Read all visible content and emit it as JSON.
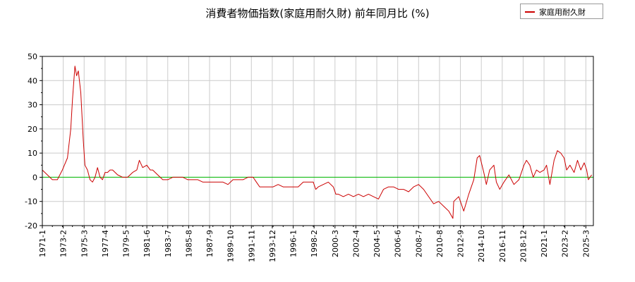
{
  "chart_data": {
    "type": "line",
    "title": "消費者物価指数(家庭用耐久財) 前年同月比 (%)",
    "xlabel": "",
    "ylabel": "",
    "ylim": [
      -20,
      50
    ],
    "yticks": [
      -20,
      -10,
      0,
      10,
      20,
      30,
      40,
      50
    ],
    "grid": true,
    "legend_position": "top-right",
    "reference_line": 0,
    "x_tick_labels": [
      "1971-1",
      "1973-2",
      "1975-3",
      "1977-4",
      "1979-5",
      "1981-6",
      "1983-7",
      "1985-8",
      "1987-9",
      "1989-10",
      "1991-11",
      "1993-12",
      "1996-1",
      "1998-2",
      "2000-3",
      "2002-4",
      "2004-5",
      "2006-6",
      "2008-7",
      "2010-8",
      "2012-9",
      "2014-10",
      "2016-11",
      "2018-12",
      "2021-1",
      "2023-2",
      "2025-3"
    ],
    "x_range": [
      "1971-01",
      "2025-12"
    ],
    "colors": {
      "series": "#cc0000",
      "zero_line": "#00bb00",
      "grid": "#cccccc"
    },
    "series": [
      {
        "name": "家庭用耐久財",
        "points": [
          [
            "1971-01",
            3
          ],
          [
            "1971-07",
            1
          ],
          [
            "1972-01",
            -1
          ],
          [
            "1972-07",
            -1
          ],
          [
            "1973-01",
            3
          ],
          [
            "1973-07",
            8
          ],
          [
            "1973-11",
            20
          ],
          [
            "1974-01",
            32
          ],
          [
            "1974-04",
            46
          ],
          [
            "1974-06",
            42
          ],
          [
            "1974-08",
            44
          ],
          [
            "1974-11",
            35
          ],
          [
            "1975-02",
            15
          ],
          [
            "1975-04",
            5
          ],
          [
            "1975-07",
            3
          ],
          [
            "1975-10",
            -1
          ],
          [
            "1976-01",
            -2
          ],
          [
            "1976-04",
            0
          ],
          [
            "1976-07",
            4
          ],
          [
            "1976-10",
            0
          ],
          [
            "1977-01",
            -1
          ],
          [
            "1977-04",
            2
          ],
          [
            "1977-07",
            2
          ],
          [
            "1977-10",
            3
          ],
          [
            "1978-01",
            3
          ],
          [
            "1978-07",
            1
          ],
          [
            "1979-01",
            0
          ],
          [
            "1979-07",
            0
          ],
          [
            "1980-01",
            2
          ],
          [
            "1980-06",
            3
          ],
          [
            "1980-09",
            7
          ],
          [
            "1981-01",
            4
          ],
          [
            "1981-06",
            5
          ],
          [
            "1981-10",
            3
          ],
          [
            "1982-01",
            3
          ],
          [
            "1982-07",
            1
          ],
          [
            "1983-01",
            -1
          ],
          [
            "1983-07",
            -1
          ],
          [
            "1984-01",
            0
          ],
          [
            "1984-07",
            0
          ],
          [
            "1985-01",
            0
          ],
          [
            "1985-07",
            -1
          ],
          [
            "1986-01",
            -1
          ],
          [
            "1986-07",
            -1
          ],
          [
            "1987-01",
            -2
          ],
          [
            "1987-07",
            -2
          ],
          [
            "1988-01",
            -2
          ],
          [
            "1988-07",
            -2
          ],
          [
            "1989-01",
            -2
          ],
          [
            "1989-07",
            -3
          ],
          [
            "1990-01",
            -1
          ],
          [
            "1990-07",
            -1
          ],
          [
            "1991-01",
            -1
          ],
          [
            "1991-07",
            0
          ],
          [
            "1992-01",
            0
          ],
          [
            "1992-05",
            -2
          ],
          [
            "1992-09",
            -4
          ],
          [
            "1993-01",
            -4
          ],
          [
            "1993-07",
            -4
          ],
          [
            "1994-01",
            -4
          ],
          [
            "1994-07",
            -3
          ],
          [
            "1995-01",
            -4
          ],
          [
            "1995-07",
            -4
          ],
          [
            "1996-01",
            -4
          ],
          [
            "1996-07",
            -4
          ],
          [
            "1997-01",
            -2
          ],
          [
            "1997-07",
            -2
          ],
          [
            "1998-01",
            -2
          ],
          [
            "1998-04",
            -5
          ],
          [
            "1998-07",
            -4
          ],
          [
            "1999-01",
            -3
          ],
          [
            "1999-07",
            -2
          ],
          [
            "2000-01",
            -4
          ],
          [
            "2000-04",
            -7
          ],
          [
            "2000-07",
            -7
          ],
          [
            "2001-01",
            -8
          ],
          [
            "2001-07",
            -7
          ],
          [
            "2002-01",
            -8
          ],
          [
            "2002-07",
            -7
          ],
          [
            "2003-01",
            -8
          ],
          [
            "2003-07",
            -7
          ],
          [
            "2004-01",
            -8
          ],
          [
            "2004-07",
            -9
          ],
          [
            "2005-01",
            -5
          ],
          [
            "2005-07",
            -4
          ],
          [
            "2006-01",
            -4
          ],
          [
            "2006-07",
            -5
          ],
          [
            "2007-01",
            -5
          ],
          [
            "2007-07",
            -6
          ],
          [
            "2008-01",
            -4
          ],
          [
            "2008-07",
            -3
          ],
          [
            "2009-01",
            -5
          ],
          [
            "2009-07",
            -8
          ],
          [
            "2010-01",
            -11
          ],
          [
            "2010-07",
            -10
          ],
          [
            "2011-01",
            -12
          ],
          [
            "2011-07",
            -14
          ],
          [
            "2011-12",
            -17
          ],
          [
            "2012-01",
            -10
          ],
          [
            "2012-07",
            -8
          ],
          [
            "2013-01",
            -14
          ],
          [
            "2013-07",
            -7
          ],
          [
            "2014-01",
            -1
          ],
          [
            "2014-05",
            8
          ],
          [
            "2014-08",
            9
          ],
          [
            "2015-01",
            2
          ],
          [
            "2015-04",
            -3
          ],
          [
            "2015-08",
            3
          ],
          [
            "2016-01",
            5
          ],
          [
            "2016-04",
            -2
          ],
          [
            "2016-08",
            -5
          ],
          [
            "2017-01",
            -2
          ],
          [
            "2017-07",
            1
          ],
          [
            "2018-01",
            -3
          ],
          [
            "2018-07",
            -1
          ],
          [
            "2019-01",
            5
          ],
          [
            "2019-04",
            7
          ],
          [
            "2019-08",
            5
          ],
          [
            "2019-12",
            0
          ],
          [
            "2020-04",
            3
          ],
          [
            "2020-08",
            2
          ],
          [
            "2021-01",
            3
          ],
          [
            "2021-04",
            5
          ],
          [
            "2021-08",
            -3
          ],
          [
            "2022-01",
            7
          ],
          [
            "2022-05",
            11
          ],
          [
            "2022-09",
            10
          ],
          [
            "2023-01",
            8
          ],
          [
            "2023-04",
            3
          ],
          [
            "2023-08",
            5
          ],
          [
            "2024-01",
            2
          ],
          [
            "2024-05",
            7
          ],
          [
            "2024-09",
            3
          ],
          [
            "2025-01",
            6
          ],
          [
            "2025-04",
            3
          ],
          [
            "2025-06",
            -1
          ],
          [
            "2025-10",
            1
          ]
        ]
      }
    ]
  }
}
